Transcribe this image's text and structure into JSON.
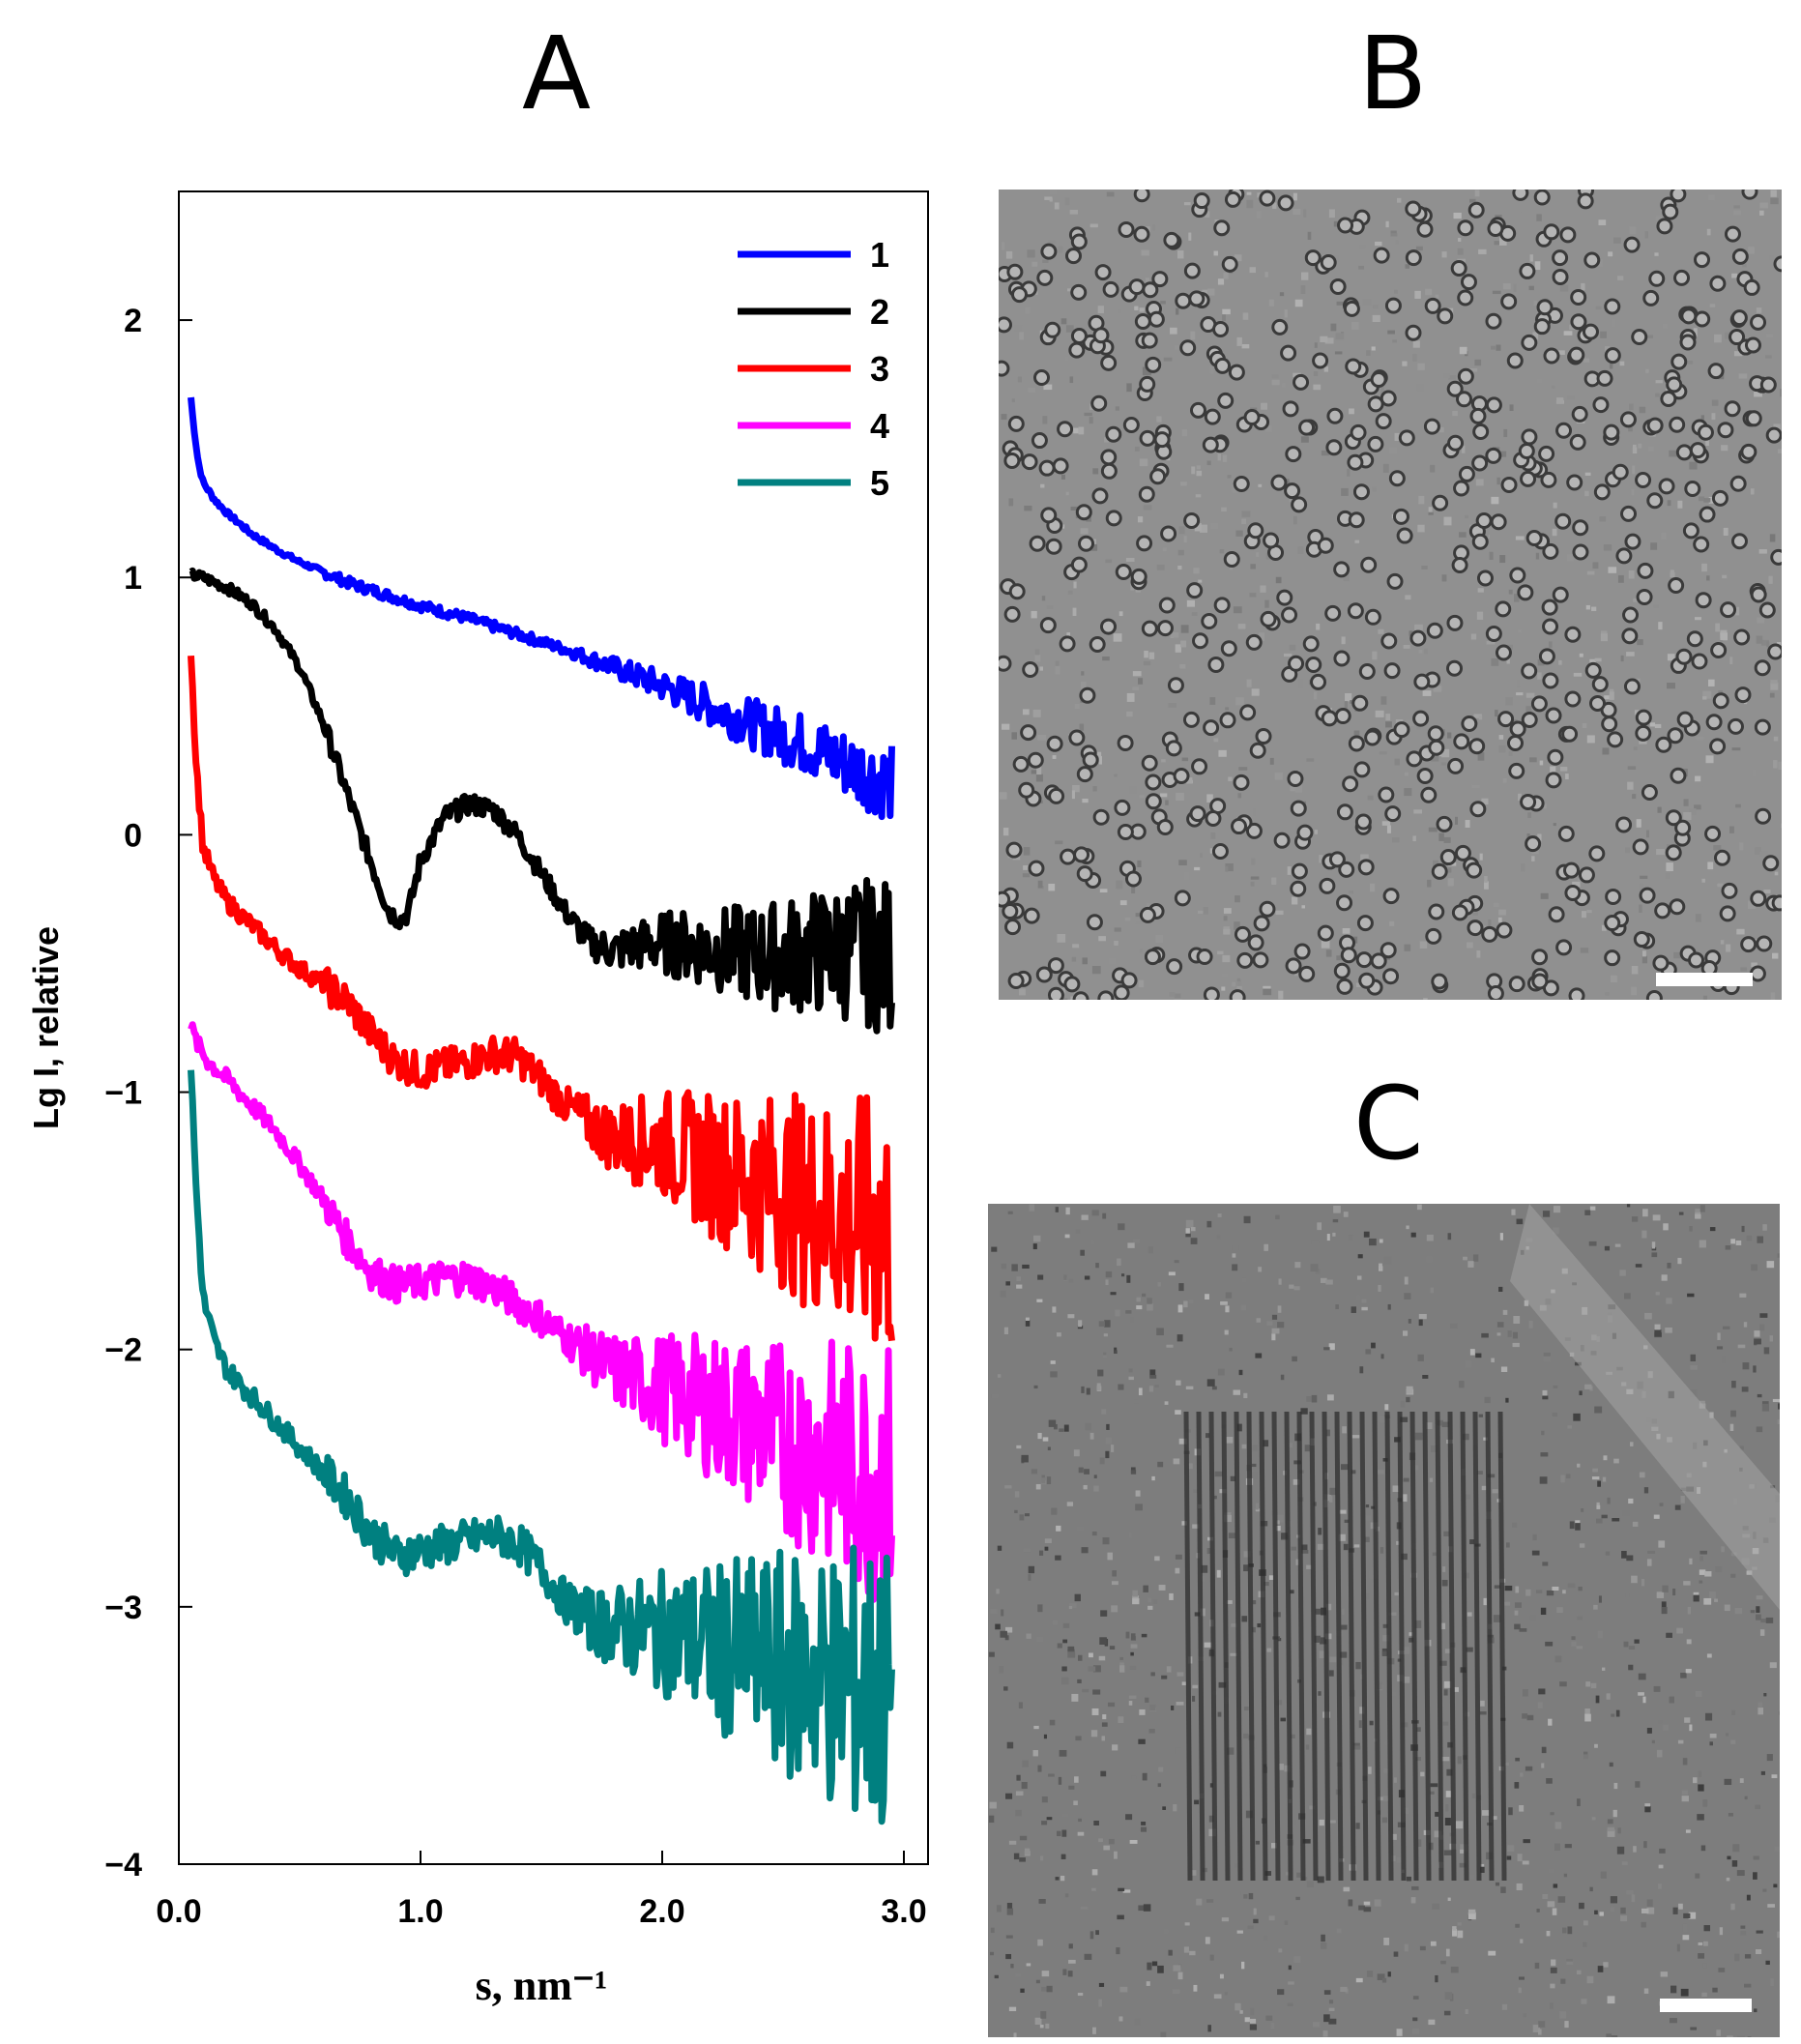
{
  "panels": {
    "a_label": "A",
    "b_label": "B",
    "c_label": "C"
  },
  "images": {
    "b": {
      "description_name": "tem-micrograph-particles",
      "scale_bar": true
    },
    "c": {
      "description_name": "tem-micrograph-lattice",
      "scale_bar": true
    }
  },
  "chart_data": {
    "type": "line",
    "title": "",
    "xlabel": "s, nm⁻¹",
    "ylabel": "Lg I, relative",
    "xlim": [
      0.0,
      3.1
    ],
    "ylim": [
      -4,
      2.5
    ],
    "xticks": [
      0.0,
      1.0,
      2.0,
      3.0
    ],
    "xtick_labels": [
      "0.0",
      "1.0",
      "2.0",
      "3.0"
    ],
    "yticks": [
      -4,
      -3,
      -2,
      -1,
      0,
      1,
      2
    ],
    "ytick_labels": [
      "−4",
      "−3",
      "−2",
      "−1",
      "0",
      "1",
      "2"
    ],
    "legend_position": "top-right",
    "grid": false,
    "series": [
      {
        "name": "1",
        "color": "#0000ff",
        "noise": 0.02,
        "x": [
          0.05,
          0.06,
          0.08,
          0.1,
          0.15,
          0.2,
          0.3,
          0.4,
          0.5,
          0.6,
          0.7,
          0.8,
          0.9,
          1.0,
          1.2,
          1.4,
          1.6,
          1.8,
          2.0,
          2.2,
          2.4,
          2.6,
          2.8,
          2.95
        ],
        "y": [
          1.7,
          1.6,
          1.45,
          1.37,
          1.3,
          1.25,
          1.17,
          1.11,
          1.06,
          1.02,
          0.98,
          0.95,
          0.92,
          0.89,
          0.84,
          0.78,
          0.72,
          0.65,
          0.58,
          0.5,
          0.42,
          0.35,
          0.26,
          0.2
        ]
      },
      {
        "name": "2",
        "color": "#000000",
        "noise": 0.04,
        "x": [
          0.05,
          0.1,
          0.2,
          0.3,
          0.4,
          0.5,
          0.6,
          0.7,
          0.8,
          0.87,
          0.92,
          0.95,
          1.0,
          1.1,
          1.2,
          1.3,
          1.4,
          1.5,
          1.6,
          1.7,
          1.8,
          1.9,
          2.0,
          2.2,
          2.4,
          2.6,
          2.8,
          2.95
        ],
        "y": [
          1.01,
          1.0,
          0.96,
          0.9,
          0.8,
          0.65,
          0.43,
          0.15,
          -0.12,
          -0.3,
          -0.33,
          -0.3,
          -0.1,
          0.07,
          0.12,
          0.1,
          0.0,
          -0.15,
          -0.3,
          -0.42,
          -0.45,
          -0.43,
          -0.42,
          -0.44,
          -0.47,
          -0.46,
          -0.45,
          -0.48
        ]
      },
      {
        "name": "3",
        "color": "#ff0000",
        "noise": 0.07,
        "x": [
          0.05,
          0.07,
          0.1,
          0.15,
          0.2,
          0.3,
          0.4,
          0.5,
          0.6,
          0.7,
          0.8,
          0.9,
          1.0,
          1.1,
          1.2,
          1.3,
          1.4,
          1.5,
          1.6,
          1.7,
          1.8,
          2.0,
          2.2,
          2.4,
          2.6,
          2.8,
          2.95
        ],
        "y": [
          0.72,
          0.3,
          -0.05,
          -0.18,
          -0.26,
          -0.35,
          -0.44,
          -0.52,
          -0.58,
          -0.65,
          -0.78,
          -0.88,
          -0.92,
          -0.9,
          -0.88,
          -0.85,
          -0.86,
          -0.95,
          -1.05,
          -1.12,
          -1.18,
          -1.2,
          -1.28,
          -1.35,
          -1.42,
          -1.5,
          -1.55
        ]
      },
      {
        "name": "4",
        "color": "#ff00ff",
        "noise": 0.07,
        "x": [
          0.05,
          0.08,
          0.12,
          0.2,
          0.3,
          0.4,
          0.5,
          0.6,
          0.7,
          0.8,
          0.9,
          1.0,
          1.1,
          1.2,
          1.3,
          1.4,
          1.5,
          1.6,
          1.7,
          1.8,
          2.0,
          2.2,
          2.4,
          2.6,
          2.8,
          2.95
        ],
        "y": [
          -0.75,
          -0.82,
          -0.88,
          -0.95,
          -1.05,
          -1.15,
          -1.28,
          -1.42,
          -1.58,
          -1.7,
          -1.75,
          -1.74,
          -1.72,
          -1.72,
          -1.76,
          -1.82,
          -1.88,
          -1.95,
          -2.02,
          -2.08,
          -2.15,
          -2.22,
          -2.3,
          -2.38,
          -2.45,
          -2.5
        ]
      },
      {
        "name": "5",
        "color": "#008080",
        "noise": 0.08,
        "x": [
          0.05,
          0.07,
          0.1,
          0.15,
          0.2,
          0.3,
          0.4,
          0.5,
          0.6,
          0.7,
          0.8,
          0.9,
          1.0,
          1.1,
          1.2,
          1.3,
          1.4,
          1.5,
          1.6,
          1.7,
          1.8,
          2.0,
          2.2,
          2.4,
          2.6,
          2.8,
          2.95
        ],
        "y": [
          -0.9,
          -1.35,
          -1.8,
          -1.98,
          -2.08,
          -2.18,
          -2.28,
          -2.38,
          -2.48,
          -2.58,
          -2.72,
          -2.8,
          -2.78,
          -2.76,
          -2.74,
          -2.72,
          -2.75,
          -2.85,
          -2.98,
          -3.05,
          -3.08,
          -3.1,
          -3.15,
          -3.2,
          -3.25,
          -3.3,
          -3.35
        ]
      }
    ]
  }
}
